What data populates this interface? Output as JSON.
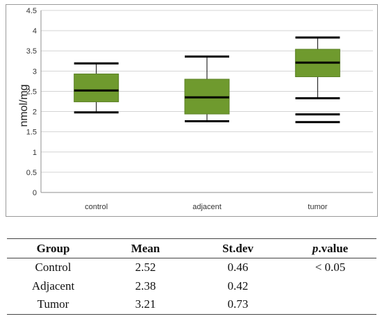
{
  "chart_data": {
    "type": "boxplot",
    "ylabel": "nmol/mg",
    "ylim": [
      0,
      4.5
    ],
    "yticks": [
      0,
      0.5,
      1,
      1.5,
      2,
      2.5,
      3,
      3.5,
      4,
      4.5
    ],
    "grid": true,
    "categories": [
      "control",
      "adjacent",
      "tumor"
    ],
    "boxes": [
      {
        "category": "control",
        "whisker_low": 1.98,
        "q1": 2.24,
        "median": 2.52,
        "q3": 2.93,
        "whisker_high": 3.19,
        "outliers": []
      },
      {
        "category": "adjacent",
        "whisker_low": 1.76,
        "q1": 1.94,
        "median": 2.35,
        "q3": 2.8,
        "whisker_high": 3.36,
        "outliers": []
      },
      {
        "category": "tumor",
        "whisker_low": 2.33,
        "q1": 2.86,
        "median": 3.21,
        "q3": 3.54,
        "whisker_high": 3.83,
        "outliers": [
          1.93,
          1.74
        ]
      }
    ],
    "colors": {
      "box": "#6f9a2e",
      "box_edge": "#5b8126",
      "median": "#000000",
      "grid": "#d4d4d4",
      "axis": "#8f8f8f"
    }
  },
  "table": {
    "headers": {
      "group": "Group",
      "mean": "Mean",
      "stdev": "St.dev",
      "p_italic": "p",
      "p_rest": ".value"
    },
    "rows": [
      {
        "group": "Control",
        "mean": "2.52",
        "stdev": "0.46",
        "p": "< 0.05"
      },
      {
        "group": "Adjacent",
        "mean": "2.38",
        "stdev": "0.42",
        "p": ""
      },
      {
        "group": "Tumor",
        "mean": "3.21",
        "stdev": "0.73",
        "p": ""
      }
    ]
  }
}
